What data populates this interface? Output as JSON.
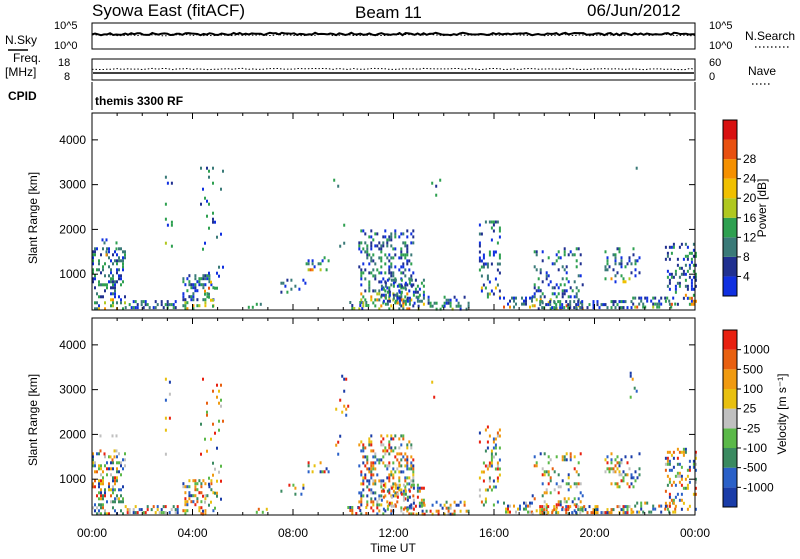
{
  "header": {
    "station": "Syowa East (fitACF)",
    "beam": "Beam 11",
    "date": "06/Jun/2012"
  },
  "panels": {
    "sky_label": "N.Sky",
    "sky_ticks_left": [
      "10^5",
      "10^0"
    ],
    "search_label": "N.Search",
    "search_ticks_right": [
      "10^5",
      "10^0"
    ],
    "freq_label_1": "Freq.",
    "freq_label_2": "[MHz]",
    "freq_ticks": [
      "18",
      "8"
    ],
    "nave_label": "Nave",
    "nave_ticks": [
      "60",
      "0"
    ],
    "cpid_label": "CPID",
    "cpid_text": "themis 3300 RF"
  },
  "chart_data": [
    {
      "type": "heatmap",
      "name": "power",
      "ylabel": "Slant Range [km]",
      "yticks": [
        1000,
        2000,
        3000,
        4000
      ],
      "ylim": [
        200,
        4600
      ],
      "xlabel": "Time UT",
      "xticks": [
        "00:00",
        "04:00",
        "08:00",
        "12:00",
        "16:00",
        "20:00",
        "00:00"
      ],
      "colorbar_label": "Power [dB]",
      "colorbar_ticks": [
        "4",
        "8",
        "12",
        "16",
        "20",
        "24",
        "28"
      ],
      "colors": [
        "#1030e0",
        "#203090",
        "#3a7a78",
        "#2ea050",
        "#b0c820",
        "#f0c000",
        "#f59000",
        "#e85010",
        "#d81010"
      ]
    },
    {
      "type": "heatmap",
      "name": "velocity",
      "ylabel": "Slant Range [km]",
      "yticks": [
        1000,
        2000,
        3000,
        4000
      ],
      "ylim": [
        200,
        4600
      ],
      "xlabel": "Time UT",
      "xticks": [
        "00:00",
        "04:00",
        "08:00",
        "12:00",
        "16:00",
        "20:00",
        "00:00"
      ],
      "colorbar_label": "Velocity [m s⁻¹]",
      "colorbar_ticks": [
        "1000",
        "500",
        "100",
        "25",
        "-25",
        "-100",
        "-500",
        "-1000"
      ],
      "colors": [
        "#1a3ca8",
        "#2a60c8",
        "#3a8a60",
        "#5ab848",
        "#c0c0c0",
        "#e8c010",
        "#f09a10",
        "#e86010",
        "#e82010"
      ]
    }
  ],
  "footer": {
    "time_label": "Time UT"
  }
}
